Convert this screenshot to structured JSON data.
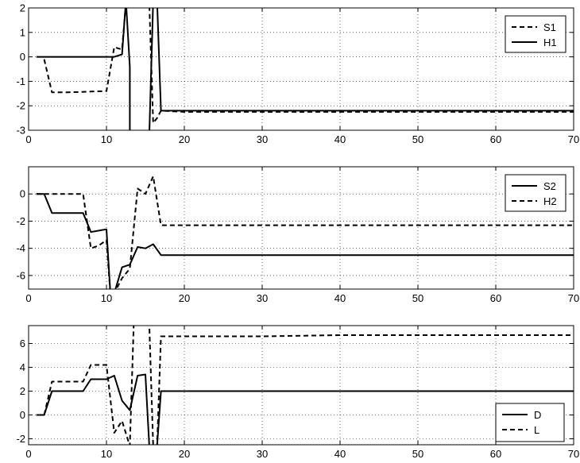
{
  "chart_data": [
    {
      "type": "line",
      "xlim": [
        0,
        70
      ],
      "ylim": [
        -3,
        2
      ],
      "x_ticks": [
        0,
        10,
        20,
        30,
        40,
        50,
        60,
        70
      ],
      "y_ticks": [
        -3,
        -2,
        -1,
        0,
        1,
        2
      ],
      "grid": true,
      "legend_position": "top-right",
      "series": [
        {
          "name": "S1",
          "style": "dashed",
          "x": [
            2,
            3,
            5,
            8,
            10,
            11,
            12,
            12.5,
            13,
            15.5,
            16,
            16.5,
            17,
            20,
            30,
            40,
            50,
            60,
            70
          ],
          "y": [
            -0.1,
            -1.45,
            -1.45,
            -1.42,
            -1.4,
            0.4,
            0.3,
            2.2,
            2.2,
            2.2,
            -2.7,
            -2.5,
            -2.2,
            -2.25,
            -2.25,
            -2.25,
            -2.25,
            -2.25,
            -2.25
          ]
        },
        {
          "name": "H1",
          "style": "solid",
          "x": [
            1,
            5,
            8,
            10,
            11,
            12,
            12.5,
            13,
            13,
            15.5,
            16,
            16.5,
            17,
            20,
            30,
            40,
            50,
            60,
            70
          ],
          "y": [
            0,
            0,
            0,
            0,
            0,
            0.1,
            2.3,
            -0.4,
            -3.2,
            -3.2,
            2.3,
            2.3,
            -2.2,
            -2.2,
            -2.2,
            -2.2,
            -2.2,
            -2.2,
            -2.2
          ]
        }
      ]
    },
    {
      "type": "line",
      "xlim": [
        0,
        70
      ],
      "ylim": [
        -7,
        2
      ],
      "x_ticks": [
        0,
        10,
        20,
        30,
        40,
        50,
        60,
        70
      ],
      "y_ticks": [
        -6,
        -4,
        -2,
        0
      ],
      "grid": true,
      "legend_position": "top-right",
      "series": [
        {
          "name": "S2",
          "style": "solid",
          "x": [
            1,
            2,
            3,
            5,
            7,
            8,
            10,
            10.5,
            11,
            12,
            13,
            14,
            15,
            16,
            17,
            20,
            30,
            40,
            50,
            60,
            70
          ],
          "y": [
            0,
            0,
            -1.4,
            -1.4,
            -1.4,
            -2.8,
            -2.6,
            -7.3,
            -7.3,
            -5.4,
            -5.2,
            -3.9,
            -4.0,
            -3.7,
            -4.5,
            -4.5,
            -4.5,
            -4.5,
            -4.5,
            -4.5,
            -4.5
          ]
        },
        {
          "name": "H2",
          "style": "dashed",
          "x": [
            1,
            3,
            5,
            7,
            8,
            9,
            10,
            10.5,
            11,
            12,
            13,
            14,
            15,
            16,
            17,
            20,
            30,
            40,
            50,
            60,
            70
          ],
          "y": [
            0,
            0,
            0,
            0,
            -4.0,
            -3.8,
            -3.4,
            -7.3,
            -7.3,
            -6.2,
            -5.5,
            0.4,
            0.0,
            1.3,
            -2.3,
            -2.3,
            -2.3,
            -2.3,
            -2.3,
            -2.3,
            -2.3
          ]
        }
      ]
    },
    {
      "type": "line",
      "xlim": [
        0,
        70
      ],
      "ylim": [
        -2.5,
        7.5
      ],
      "x_ticks": [
        0,
        10,
        20,
        30,
        40,
        50,
        60,
        70
      ],
      "y_ticks": [
        -2,
        0,
        2,
        4,
        6
      ],
      "grid": true,
      "legend_position": "bottom-right",
      "series": [
        {
          "name": "D",
          "style": "solid",
          "x": [
            1,
            2,
            3,
            5,
            7,
            8,
            10,
            11,
            12,
            13,
            14,
            15,
            15.5,
            16,
            16.5,
            17,
            20,
            30,
            40,
            50,
            60,
            70
          ],
          "y": [
            0,
            0,
            2.0,
            2.0,
            2.0,
            3.0,
            3.0,
            3.3,
            1.2,
            0.4,
            3.3,
            3.4,
            -2.6,
            -2.6,
            -2.6,
            2.0,
            2.0,
            2.0,
            2.0,
            2.0,
            2.0,
            2.0
          ]
        },
        {
          "name": "L",
          "style": "dashed",
          "x": [
            1,
            2,
            3,
            5,
            7,
            8,
            10,
            11,
            12,
            13,
            13.5,
            14,
            15,
            15.5,
            16,
            16.5,
            17,
            20,
            30,
            40,
            50,
            60,
            70
          ],
          "y": [
            0,
            0,
            2.8,
            2.8,
            2.8,
            4.2,
            4.2,
            -1.5,
            -0.5,
            -2.6,
            7.6,
            7.6,
            7.6,
            7.6,
            -2.6,
            -2.6,
            6.6,
            6.6,
            6.6,
            6.7,
            6.7,
            6.7,
            6.7
          ]
        }
      ]
    }
  ]
}
